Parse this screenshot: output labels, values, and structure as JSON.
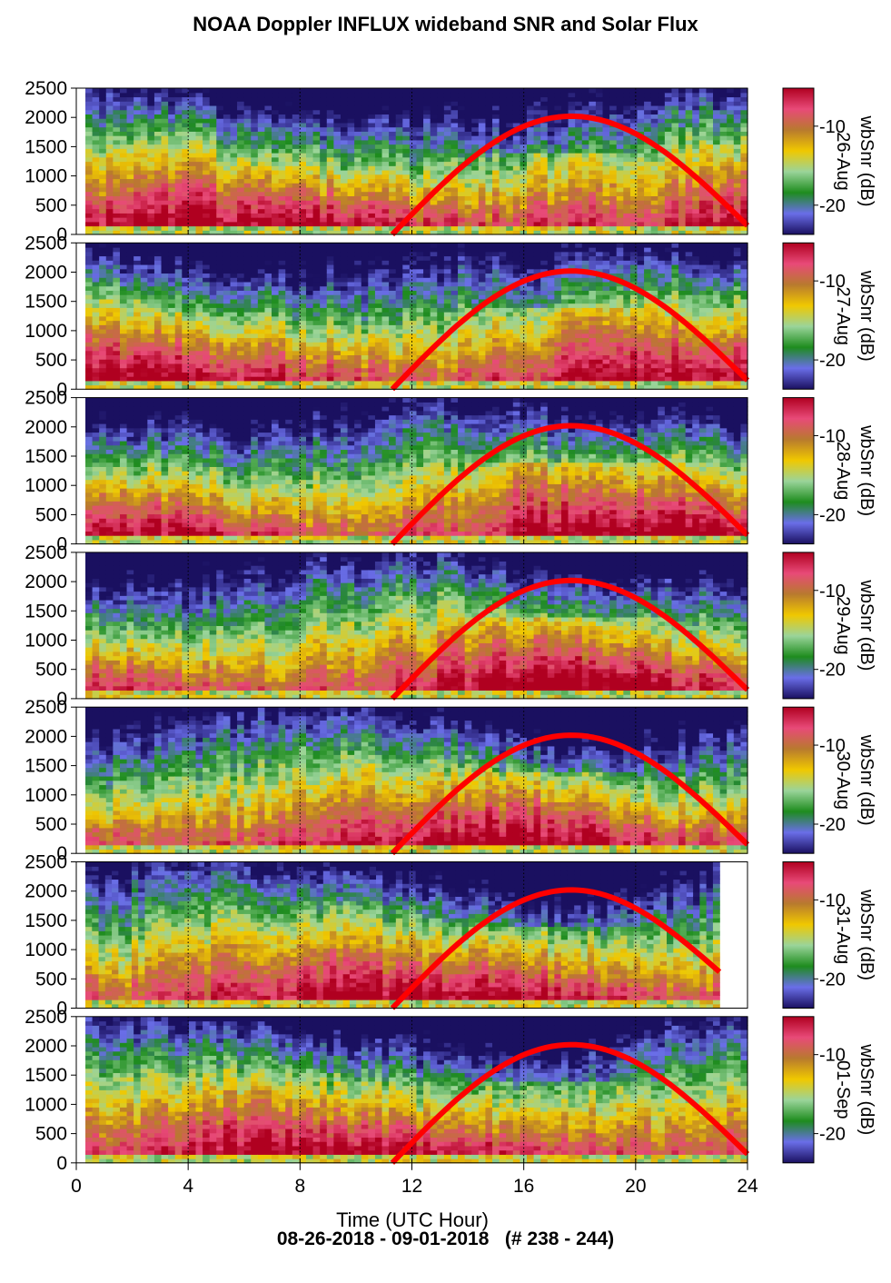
{
  "title": "NOAA Doppler INFLUX wideband SNR and Solar Flux",
  "footer": "08-26-2018 - 09-01-2018   (# 238 - 244)",
  "chart_data": {
    "type": "heatmap",
    "title": "NOAA Doppler INFLUX wideband SNR and Solar Flux",
    "xlabel": "Time (UTC Hour)",
    "xlim": [
      0,
      24
    ],
    "xticks": [
      0,
      4,
      8,
      12,
      16,
      20,
      24
    ],
    "ylim": [
      0,
      2500
    ],
    "yticks": [
      0,
      500,
      1000,
      1500,
      2000,
      2500
    ],
    "dotted_vlines": [
      4,
      8,
      12,
      16,
      20,
      24
    ],
    "colorbar": {
      "label": "wbSnr (dB)",
      "ticks": [
        "-10",
        "-20"
      ],
      "colors": [
        "#1a1060",
        "#6a6ee8",
        "#1e8c1e",
        "#9ad49a",
        "#f0c800",
        "#b87a2e",
        "#e84a78",
        "#b00020"
      ]
    },
    "solar_curve": {
      "color": "#ff0000",
      "start_hour": 11.3,
      "peak_hour": 17.7,
      "peak_value": 2020,
      "end_hour": 24
    },
    "panels": [
      {
        "date": "26-Aug",
        "data_end_hour": 24,
        "curve_end_value": 150
      },
      {
        "date": "27-Aug",
        "data_end_hour": 24,
        "curve_end_value": 150
      },
      {
        "date": "28-Aug",
        "data_end_hour": 24,
        "curve_end_value": 150
      },
      {
        "date": "29-Aug",
        "data_end_hour": 24,
        "curve_end_value": 150
      },
      {
        "date": "30-Aug",
        "data_end_hour": 24,
        "curve_end_value": 150
      },
      {
        "date": "31-Aug",
        "data_end_hour": 23,
        "curve_end_value": 620
      },
      {
        "date": "01-Sep",
        "data_end_hour": 24,
        "curve_end_value": 150
      }
    ]
  }
}
